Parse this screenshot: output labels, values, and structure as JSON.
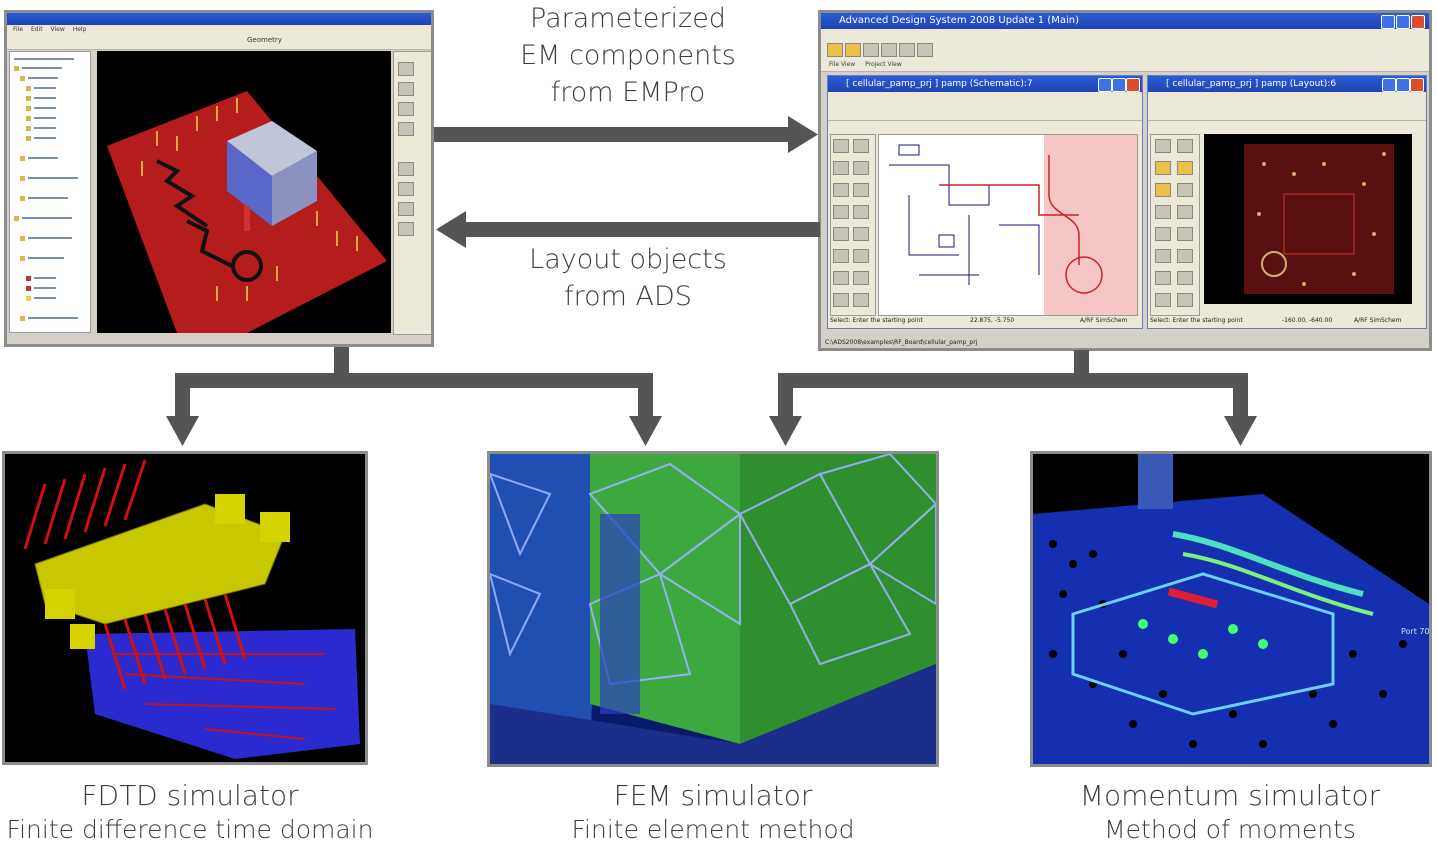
{
  "arrows": {
    "top_label": [
      "Parameterized",
      "EM components",
      "from EMPro"
    ],
    "bottom_label": [
      "Layout objects",
      "from ADS"
    ]
  },
  "empro_window": {
    "menu": [
      "File",
      "Edit",
      "View",
      "Help"
    ],
    "toolbar_title": "Geometry"
  },
  "ads_window": {
    "title": "Advanced Design System 2008 Update 1 (Main)",
    "tabs": [
      "File View",
      "Project View"
    ],
    "schematic_title": "[ cellular_pamp_prj ] pamp (Schematic):7",
    "layout_title": "[ cellular_pamp_prj ] pamp (Layout):6",
    "schematic_status": "Select: Enter the starting point",
    "schematic_coords": "22.875, -5.750",
    "schematic_mode": "A/RF  SimSchem",
    "layout_status": "Select: Enter the starting point",
    "layout_coords": "-160.00, -640.00",
    "layout_mode": "A/RF  SimSchem",
    "path": "C:\\ADS2008\\examples\\RF_Board\\cellular_pamp_prj"
  },
  "simulators": [
    {
      "title": "FDTD simulator",
      "subtitle": "Finite difference time domain"
    },
    {
      "title": "FEM simulator",
      "subtitle": "Finite element method"
    },
    {
      "title": "Momentum simulator",
      "subtitle": "Method of moments"
    }
  ],
  "momentum_port_label": "Port 70",
  "colors": {
    "arrow": "#555555",
    "frame": "#8c8c8c",
    "board_red": "#b31a1a",
    "fdtd_yellow": "#d6d200",
    "fem_green": "#2f8f2f",
    "momentum_blue": "#1a33b8"
  }
}
